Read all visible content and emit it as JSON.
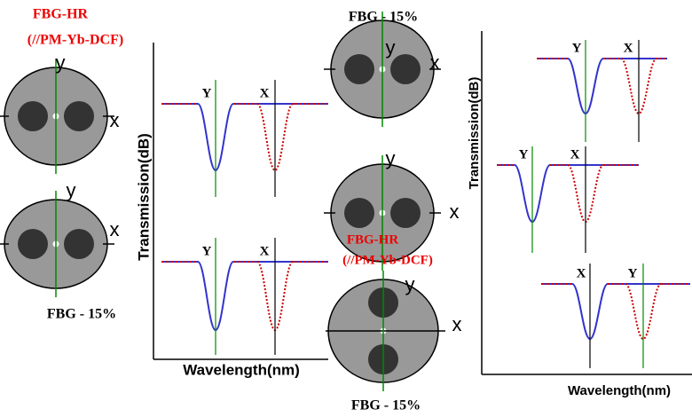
{
  "left": {
    "caption_top": [
      "FBG-HR",
      "(//PM-Yb-DCF)"
    ],
    "fibers": [
      {
        "y": "y",
        "x": "x"
      },
      {
        "y": "y",
        "x": "x"
      }
    ],
    "caption_bottom": "FBG - 15%"
  },
  "left_plot": {
    "y_axis": "Transmission(dB)",
    "x_axis": "Wavelength(nm)",
    "traces": [
      {
        "labels": [
          "Y",
          "X"
        ]
      },
      {
        "labels": [
          "Y",
          "X"
        ]
      }
    ]
  },
  "middle": {
    "caption_top": "FBG - 15%",
    "fibers": [
      {
        "y": "y",
        "x": "x"
      },
      {
        "y": "y",
        "x": "x"
      },
      {
        "y": "y",
        "x": "x"
      }
    ],
    "caption_mid": [
      "FBG-HR",
      "(//PM-Yb-DCF)"
    ],
    "caption_bottom": "FBG - 15%"
  },
  "right_plot": {
    "y_axis": "Transmission(dB)",
    "x_axis": "Wavelength(nm)",
    "traces": [
      {
        "labels": [
          "Y",
          "X"
        ]
      },
      {
        "labels": [
          "Y",
          "X"
        ]
      },
      {
        "labels": [
          "X",
          "Y"
        ]
      }
    ]
  }
}
